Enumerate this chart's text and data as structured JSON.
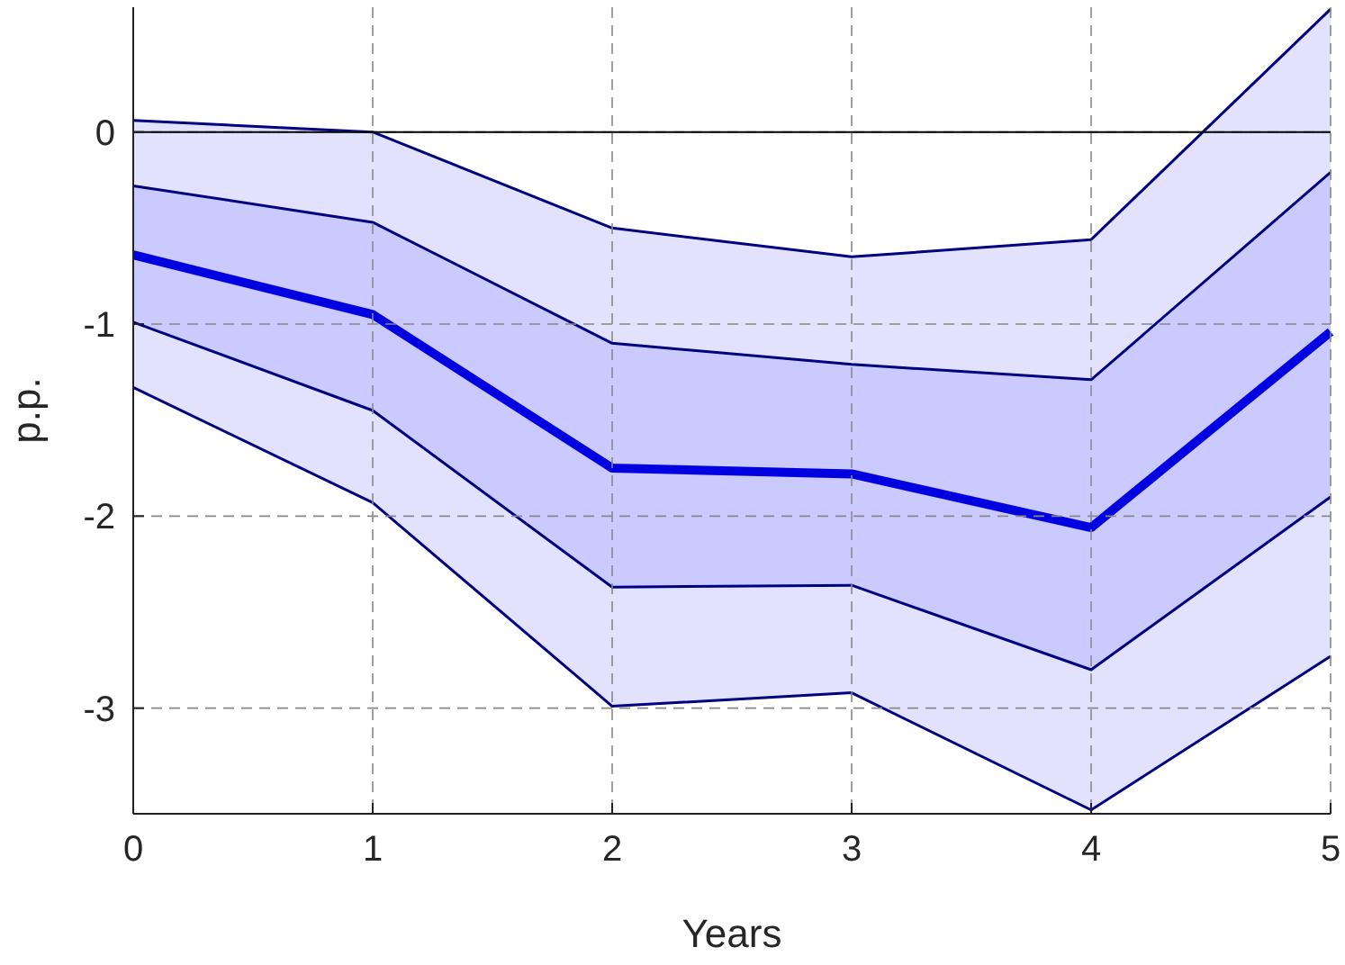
{
  "chart_data": {
    "type": "line",
    "xlabel": "Years",
    "ylabel": "p.p.",
    "x": [
      0,
      1,
      2,
      3,
      4,
      5
    ],
    "xlim": [
      0,
      5
    ],
    "xticks": [
      0,
      1,
      2,
      3,
      4,
      5
    ],
    "ylim": [
      -3.55,
      0.65
    ],
    "yticks": [
      -3,
      -2,
      -1,
      0
    ],
    "grid": true,
    "ref_lines": [
      {
        "axis": "y",
        "value": 0,
        "color": "#000000"
      }
    ],
    "series": [
      {
        "color": "#e2e2ff",
        "values": [
          null,
          null,
          null,
          null,
          null,
          null
        ],
        "lower": [
          -1.33,
          -1.93,
          -2.99,
          -2.92,
          -3.53,
          -2.73
        ],
        "upper": [
          0.06,
          0.0,
          -0.5,
          -0.65,
          -0.56,
          0.64
        ]
      },
      {
        "color": "#cacaff",
        "values": [
          null,
          null,
          null,
          null,
          null,
          null
        ],
        "lower": [
          -0.99,
          -1.45,
          -2.37,
          -2.36,
          -2.8,
          -1.9
        ],
        "upper": [
          -0.28,
          -0.47,
          -1.1,
          -1.21,
          -1.29,
          -0.21
        ]
      },
      {
        "color": "#000080",
        "values": [
          -1.33,
          -1.93,
          -2.99,
          -2.92,
          -3.53,
          -2.73
        ]
      },
      {
        "color": "#000080",
        "values": [
          0.06,
          0.0,
          -0.5,
          -0.65,
          -0.56,
          0.64
        ]
      },
      {
        "color": "#000080",
        "values": [
          -0.99,
          -1.45,
          -2.37,
          -2.36,
          -2.8,
          -1.9
        ]
      },
      {
        "color": "#000080",
        "values": [
          -0.28,
          -0.47,
          -1.1,
          -1.21,
          -1.29,
          -0.21
        ]
      },
      {
        "color": "#0000e0",
        "values": [
          -0.64,
          -0.95,
          -1.75,
          -1.78,
          -2.06,
          -1.04
        ]
      }
    ]
  }
}
